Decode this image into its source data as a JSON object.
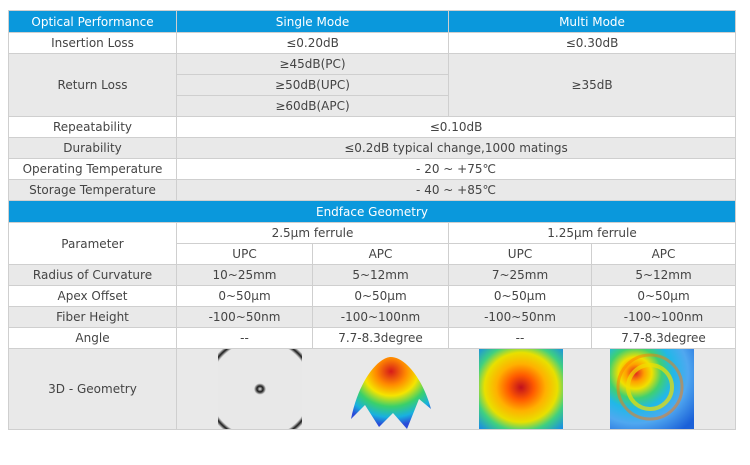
{
  "optical": {
    "header": [
      "Optical Performance",
      "Single Mode",
      "Multi Mode"
    ],
    "insertion_loss": {
      "label": "Insertion Loss",
      "single": "≤0.20dB",
      "multi": "≤0.30dB"
    },
    "return_loss": {
      "label": "Return Loss",
      "single": [
        "≥45dB(PC)",
        "≥50dB(UPC)",
        "≥60dB(APC)"
      ],
      "multi": "≥35dB"
    },
    "repeatability": {
      "label": "Repeatability",
      "value": "≤0.10dB"
    },
    "durability": {
      "label": "Durability",
      "value": "≤0.2dB typical change,1000 matings"
    },
    "operating_temp": {
      "label": "Operating Temperature",
      "value": "- 20 ~ +75℃"
    },
    "storage_temp": {
      "label": "Storage Temperature",
      "value": "- 40 ~ +85℃"
    }
  },
  "endface": {
    "title": "Endface Geometry",
    "param_label": "Parameter",
    "ferrules": [
      "2.5μm ferrule",
      "1.25μm ferrule"
    ],
    "types": [
      "UPC",
      "APC",
      "UPC",
      "APC"
    ],
    "rows": [
      {
        "label": "Radius of Curvature",
        "values": [
          "10~25mm",
          "5~12mm",
          "7~25mm",
          "5~12mm"
        ]
      },
      {
        "label": "Apex Offset",
        "values": [
          "0~50μm",
          "0~50μm",
          "0~50μm",
          "0~50μm"
        ]
      },
      {
        "label": "Fiber Height",
        "values": [
          "-100~50nm",
          "-100~100nm",
          "-100~50nm",
          "-100~100nm"
        ]
      },
      {
        "label": "Angle",
        "values": [
          "--",
          "7.7-8.3degree",
          "--",
          "7.7-8.3degree"
        ]
      }
    ],
    "geometry_label": "3D - Geometry",
    "images": [
      "interferogram-image",
      "3d-surface-image",
      "heatmap-image",
      "tilted-heatmap-image"
    ]
  }
}
